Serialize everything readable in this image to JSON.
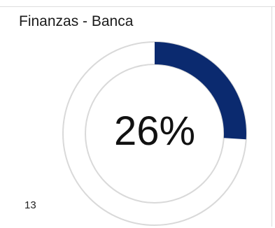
{
  "widget": {
    "title": "Finanzas - Banca",
    "percent_label": "26%",
    "percent_value": 0.26,
    "count": "13"
  },
  "colors": {
    "progress": "#0b2a6f",
    "track_stroke": "#d9d9d9",
    "track_fill": "#ffffff"
  }
}
